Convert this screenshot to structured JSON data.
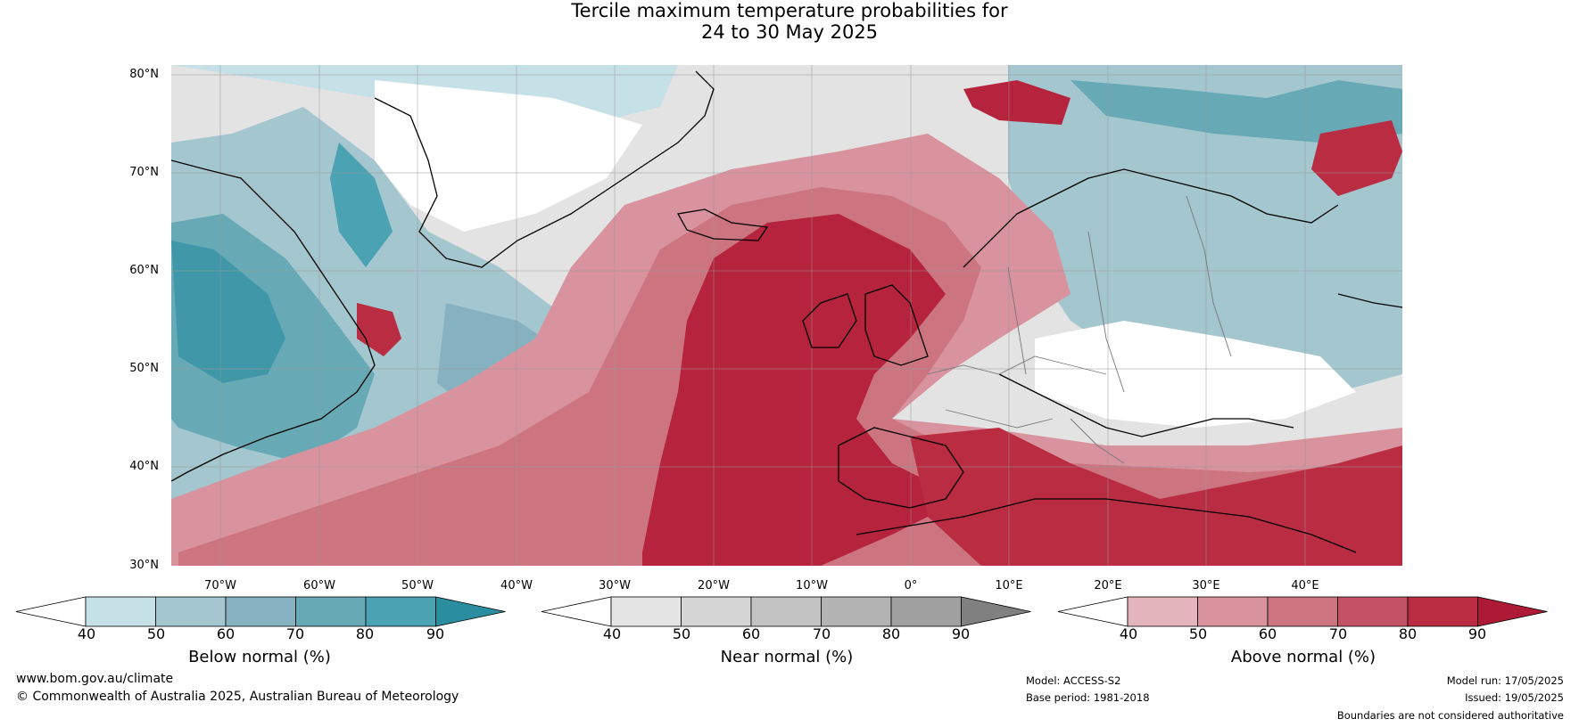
{
  "title": {
    "line1": "Tercile maximum temperature probabilities for",
    "line2": "24 to 30 May 2025"
  },
  "map": {
    "lat_labels": [
      "80°N",
      "70°N",
      "60°N",
      "50°N",
      "40°N",
      "30°N"
    ],
    "lon_labels": [
      "70°W",
      "60°W",
      "50°W",
      "40°W",
      "30°W",
      "20°W",
      "10°W",
      "0°",
      "10°E",
      "20°E",
      "30°E",
      "40°E"
    ],
    "extent": {
      "lon": [
        -75,
        50
      ],
      "lat": [
        30,
        81
      ]
    }
  },
  "colorbars": [
    {
      "id": "below",
      "label": "Below normal (%)",
      "ticks": [
        "40",
        "50",
        "60",
        "70",
        "80",
        "90"
      ],
      "colors": [
        "#ffffff",
        "#c6e0e7",
        "#a4c6ce",
        "#86b1c0",
        "#67aab5",
        "#4aa2b3",
        "#2b8ea0"
      ]
    },
    {
      "id": "near",
      "label": "Near normal (%)",
      "ticks": [
        "40",
        "50",
        "60",
        "70",
        "80",
        "90"
      ],
      "colors": [
        "#ffffff",
        "#e5e5e5",
        "#d6d6d6",
        "#c4c4c4",
        "#b3b3b3",
        "#a0a0a0",
        "#808080"
      ]
    },
    {
      "id": "above",
      "label": "Above normal (%)",
      "ticks": [
        "40",
        "50",
        "60",
        "70",
        "80",
        "90"
      ],
      "colors": [
        "#ffffff",
        "#e4b5bd",
        "#d8939e",
        "#cc7581",
        "#c45266",
        "#b92c42",
        "#ae1a35"
      ]
    }
  ],
  "footer": {
    "url": "www.bom.gov.au/climate",
    "copyright": "© Commonwealth of Australia 2025, Australian Bureau of Meteorology",
    "model": "Model: ACCESS-S2",
    "base_period": "Base period: 1981-2018",
    "model_run": "Model run: 17/05/2025",
    "issued": "Issued: 19/05/2025",
    "disclaimer": "Boundaries are not considered authoritative"
  }
}
